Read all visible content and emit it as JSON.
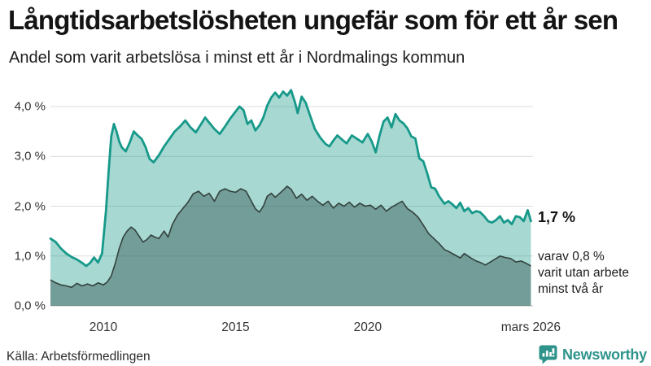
{
  "header": {
    "title": "Långtidsarbetslösheten ungefär som för ett år sen",
    "subtitle": "Andel som varit arbetslösa i minst ett år i Nordmalings kommun"
  },
  "annotations": {
    "total_end_label": "1,7 %",
    "subset_note_line1": "varav 0,8 %",
    "subset_note_line2": "varit utan arbete",
    "subset_note_line3": "minst två år"
  },
  "footer": {
    "source": "Källa: Arbetsförmedlingen",
    "brand": "Newsworthy"
  },
  "colors": {
    "total_line": "#17998a",
    "total_fill": "rgba(23,153,138,0.38)",
    "subset_line": "#33423e",
    "subset_fill": "rgba(43,77,71,0.42)",
    "gridline": "#dcdcdc",
    "baseline": "#bdbdbd",
    "brand_teal": "#2e948b"
  },
  "chart_data": {
    "type": "area",
    "title": "Långtidsarbetslösheten ungefär som för ett år sen",
    "subtitle": "Andel som varit arbetslösa i minst ett år i Nordmalings kommun",
    "grid": true,
    "legend_position": "none",
    "x_axis": {
      "range": [
        2008,
        2026.25
      ],
      "ticks": [
        {
          "label": "2010",
          "x": 2010
        },
        {
          "label": "2015",
          "x": 2015
        },
        {
          "label": "2020",
          "x": 2020
        },
        {
          "label": "mars 2026",
          "x": 2026.17
        }
      ]
    },
    "y_axis": {
      "range": [
        0,
        4.4
      ],
      "unit": "%",
      "ticks": [
        {
          "label": "0,0 %",
          "value": 0
        },
        {
          "label": "1,0 %",
          "value": 1
        },
        {
          "label": "2,0 %",
          "value": 2
        },
        {
          "label": "3,0 %",
          "value": 3
        },
        {
          "label": "4,0 %",
          "value": 4
        }
      ]
    },
    "series": [
      {
        "name": "Arbetslösa minst ett år",
        "end_value_label": "1,7 %",
        "points": [
          [
            2008.0,
            1.35
          ],
          [
            2008.2,
            1.28
          ],
          [
            2008.4,
            1.15
          ],
          [
            2008.6,
            1.05
          ],
          [
            2008.8,
            0.98
          ],
          [
            2009.0,
            0.93
          ],
          [
            2009.2,
            0.86
          ],
          [
            2009.35,
            0.8
          ],
          [
            2009.5,
            0.86
          ],
          [
            2009.65,
            0.97
          ],
          [
            2009.8,
            0.87
          ],
          [
            2009.95,
            1.05
          ],
          [
            2010.1,
            1.9
          ],
          [
            2010.2,
            2.7
          ],
          [
            2010.3,
            3.4
          ],
          [
            2010.4,
            3.65
          ],
          [
            2010.5,
            3.5
          ],
          [
            2010.6,
            3.3
          ],
          [
            2010.7,
            3.18
          ],
          [
            2010.85,
            3.1
          ],
          [
            2011.0,
            3.28
          ],
          [
            2011.15,
            3.5
          ],
          [
            2011.3,
            3.42
          ],
          [
            2011.45,
            3.35
          ],
          [
            2011.6,
            3.18
          ],
          [
            2011.75,
            2.95
          ],
          [
            2011.9,
            2.88
          ],
          [
            2012.1,
            3.02
          ],
          [
            2012.3,
            3.2
          ],
          [
            2012.5,
            3.35
          ],
          [
            2012.7,
            3.5
          ],
          [
            2012.9,
            3.6
          ],
          [
            2013.1,
            3.72
          ],
          [
            2013.3,
            3.58
          ],
          [
            2013.5,
            3.48
          ],
          [
            2013.7,
            3.65
          ],
          [
            2013.85,
            3.78
          ],
          [
            2014.0,
            3.68
          ],
          [
            2014.2,
            3.55
          ],
          [
            2014.4,
            3.45
          ],
          [
            2014.6,
            3.6
          ],
          [
            2014.8,
            3.76
          ],
          [
            2015.0,
            3.9
          ],
          [
            2015.15,
            4.0
          ],
          [
            2015.3,
            3.93
          ],
          [
            2015.45,
            3.65
          ],
          [
            2015.6,
            3.72
          ],
          [
            2015.75,
            3.52
          ],
          [
            2015.9,
            3.62
          ],
          [
            2016.05,
            3.78
          ],
          [
            2016.2,
            4.02
          ],
          [
            2016.35,
            4.18
          ],
          [
            2016.5,
            4.28
          ],
          [
            2016.65,
            4.18
          ],
          [
            2016.8,
            4.3
          ],
          [
            2016.95,
            4.22
          ],
          [
            2017.1,
            4.33
          ],
          [
            2017.25,
            4.08
          ],
          [
            2017.35,
            3.87
          ],
          [
            2017.5,
            4.2
          ],
          [
            2017.65,
            4.08
          ],
          [
            2017.8,
            3.85
          ],
          [
            2018.0,
            3.55
          ],
          [
            2018.2,
            3.38
          ],
          [
            2018.4,
            3.25
          ],
          [
            2018.55,
            3.2
          ],
          [
            2018.7,
            3.32
          ],
          [
            2018.85,
            3.42
          ],
          [
            2019.0,
            3.35
          ],
          [
            2019.2,
            3.26
          ],
          [
            2019.4,
            3.42
          ],
          [
            2019.6,
            3.35
          ],
          [
            2019.8,
            3.28
          ],
          [
            2020.0,
            3.45
          ],
          [
            2020.15,
            3.3
          ],
          [
            2020.3,
            3.08
          ],
          [
            2020.45,
            3.42
          ],
          [
            2020.6,
            3.7
          ],
          [
            2020.75,
            3.78
          ],
          [
            2020.9,
            3.58
          ],
          [
            2021.05,
            3.85
          ],
          [
            2021.2,
            3.72
          ],
          [
            2021.35,
            3.66
          ],
          [
            2021.5,
            3.56
          ],
          [
            2021.65,
            3.4
          ],
          [
            2021.8,
            3.36
          ],
          [
            2021.95,
            2.96
          ],
          [
            2022.1,
            2.9
          ],
          [
            2022.25,
            2.66
          ],
          [
            2022.4,
            2.38
          ],
          [
            2022.55,
            2.35
          ],
          [
            2022.7,
            2.2
          ],
          [
            2022.9,
            2.05
          ],
          [
            2023.05,
            2.1
          ],
          [
            2023.2,
            2.04
          ],
          [
            2023.35,
            1.96
          ],
          [
            2023.5,
            2.07
          ],
          [
            2023.65,
            1.9
          ],
          [
            2023.8,
            1.96
          ],
          [
            2023.95,
            1.86
          ],
          [
            2024.1,
            1.9
          ],
          [
            2024.25,
            1.88
          ],
          [
            2024.4,
            1.8
          ],
          [
            2024.55,
            1.7
          ],
          [
            2024.7,
            1.67
          ],
          [
            2024.85,
            1.72
          ],
          [
            2025.0,
            1.8
          ],
          [
            2025.15,
            1.67
          ],
          [
            2025.3,
            1.72
          ],
          [
            2025.45,
            1.64
          ],
          [
            2025.6,
            1.8
          ],
          [
            2025.75,
            1.78
          ],
          [
            2025.9,
            1.7
          ],
          [
            2026.05,
            1.92
          ],
          [
            2026.17,
            1.7
          ]
        ]
      },
      {
        "name": "varav utan arbete minst två år",
        "end_value_label": "0,8 %",
        "points": [
          [
            2008.0,
            0.52
          ],
          [
            2008.2,
            0.46
          ],
          [
            2008.4,
            0.42
          ],
          [
            2008.6,
            0.4
          ],
          [
            2008.8,
            0.37
          ],
          [
            2009.0,
            0.45
          ],
          [
            2009.2,
            0.4
          ],
          [
            2009.4,
            0.44
          ],
          [
            2009.6,
            0.4
          ],
          [
            2009.8,
            0.46
          ],
          [
            2010.0,
            0.42
          ],
          [
            2010.15,
            0.48
          ],
          [
            2010.3,
            0.6
          ],
          [
            2010.45,
            0.85
          ],
          [
            2010.6,
            1.15
          ],
          [
            2010.75,
            1.38
          ],
          [
            2010.9,
            1.5
          ],
          [
            2011.05,
            1.58
          ],
          [
            2011.2,
            1.52
          ],
          [
            2011.35,
            1.4
          ],
          [
            2011.5,
            1.28
          ],
          [
            2011.65,
            1.33
          ],
          [
            2011.8,
            1.42
          ],
          [
            2011.95,
            1.38
          ],
          [
            2012.1,
            1.35
          ],
          [
            2012.3,
            1.5
          ],
          [
            2012.45,
            1.38
          ],
          [
            2012.6,
            1.62
          ],
          [
            2012.8,
            1.82
          ],
          [
            2013.0,
            1.95
          ],
          [
            2013.2,
            2.08
          ],
          [
            2013.4,
            2.25
          ],
          [
            2013.6,
            2.3
          ],
          [
            2013.8,
            2.2
          ],
          [
            2014.0,
            2.26
          ],
          [
            2014.2,
            2.1
          ],
          [
            2014.4,
            2.3
          ],
          [
            2014.6,
            2.35
          ],
          [
            2014.8,
            2.3
          ],
          [
            2015.0,
            2.28
          ],
          [
            2015.2,
            2.35
          ],
          [
            2015.4,
            2.3
          ],
          [
            2015.6,
            2.1
          ],
          [
            2015.75,
            1.95
          ],
          [
            2015.9,
            1.88
          ],
          [
            2016.05,
            2.0
          ],
          [
            2016.2,
            2.2
          ],
          [
            2016.35,
            2.26
          ],
          [
            2016.5,
            2.18
          ],
          [
            2016.65,
            2.25
          ],
          [
            2016.8,
            2.32
          ],
          [
            2016.95,
            2.4
          ],
          [
            2017.1,
            2.34
          ],
          [
            2017.3,
            2.16
          ],
          [
            2017.5,
            2.24
          ],
          [
            2017.7,
            2.12
          ],
          [
            2017.9,
            2.2
          ],
          [
            2018.1,
            2.1
          ],
          [
            2018.3,
            2.02
          ],
          [
            2018.5,
            2.1
          ],
          [
            2018.7,
            1.96
          ],
          [
            2018.9,
            2.06
          ],
          [
            2019.1,
            2.0
          ],
          [
            2019.3,
            2.08
          ],
          [
            2019.5,
            1.98
          ],
          [
            2019.7,
            2.06
          ],
          [
            2019.9,
            2.0
          ],
          [
            2020.1,
            2.02
          ],
          [
            2020.3,
            1.94
          ],
          [
            2020.5,
            2.02
          ],
          [
            2020.7,
            1.9
          ],
          [
            2020.9,
            1.98
          ],
          [
            2021.1,
            2.04
          ],
          [
            2021.3,
            2.1
          ],
          [
            2021.5,
            1.95
          ],
          [
            2021.7,
            1.88
          ],
          [
            2021.9,
            1.78
          ],
          [
            2022.1,
            1.62
          ],
          [
            2022.3,
            1.45
          ],
          [
            2022.5,
            1.35
          ],
          [
            2022.7,
            1.25
          ],
          [
            2022.9,
            1.13
          ],
          [
            2023.1,
            1.08
          ],
          [
            2023.3,
            1.02
          ],
          [
            2023.5,
            0.96
          ],
          [
            2023.65,
            1.05
          ],
          [
            2023.9,
            0.96
          ],
          [
            2024.1,
            0.9
          ],
          [
            2024.3,
            0.86
          ],
          [
            2024.45,
            0.82
          ],
          [
            2024.7,
            0.9
          ],
          [
            2025.0,
            1.0
          ],
          [
            2025.2,
            0.97
          ],
          [
            2025.4,
            0.95
          ],
          [
            2025.6,
            0.88
          ],
          [
            2025.8,
            0.9
          ],
          [
            2026.0,
            0.85
          ],
          [
            2026.17,
            0.8
          ]
        ]
      }
    ]
  }
}
